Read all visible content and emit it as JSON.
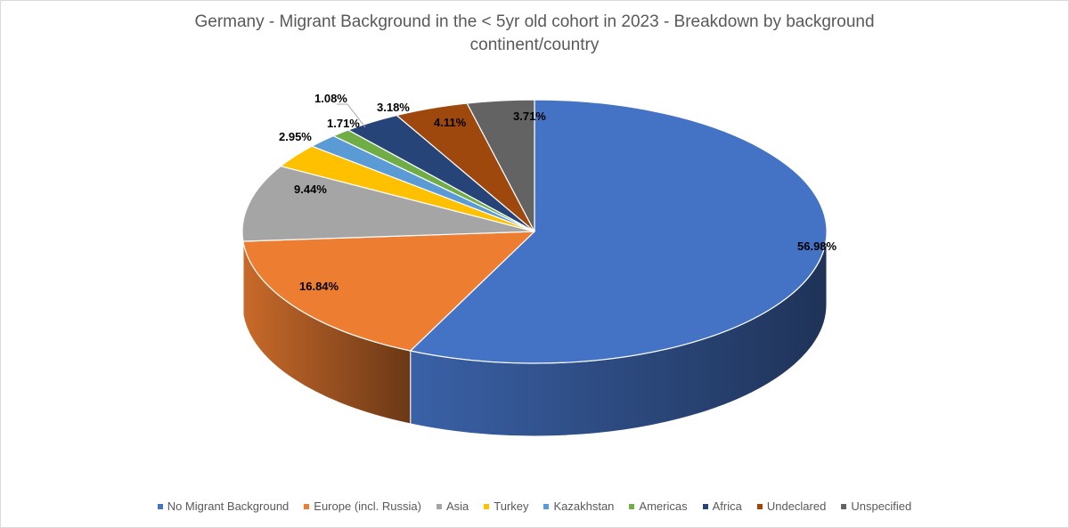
{
  "chart_data": {
    "type": "pie",
    "style": "3d",
    "title_lines": [
      "Germany - Migrant Background in the < 5yr old cohort in 2023 - Breakdown by background",
      "continent/country"
    ],
    "categories": [
      "No Migrant Background",
      "Europe (incl. Russia)",
      "Asia",
      "Turkey",
      "Kazakhstan",
      "Americas",
      "Africa",
      "Undeclared",
      "Unspecified"
    ],
    "values": [
      56.98,
      16.84,
      9.44,
      2.95,
      1.71,
      1.08,
      3.18,
      4.11,
      3.71
    ],
    "data_labels": [
      "56.98%",
      "16.84%",
      "9.44%",
      "2.95%",
      "1.71%",
      "1.08%",
      "3.18%",
      "4.11%",
      "3.71%"
    ],
    "colors": [
      "#4472c4",
      "#ed7d31",
      "#a5a5a5",
      "#ffc000",
      "#5b9bd5",
      "#70ad47",
      "#264478",
      "#9e480e",
      "#636363"
    ],
    "legend_position": "bottom"
  }
}
